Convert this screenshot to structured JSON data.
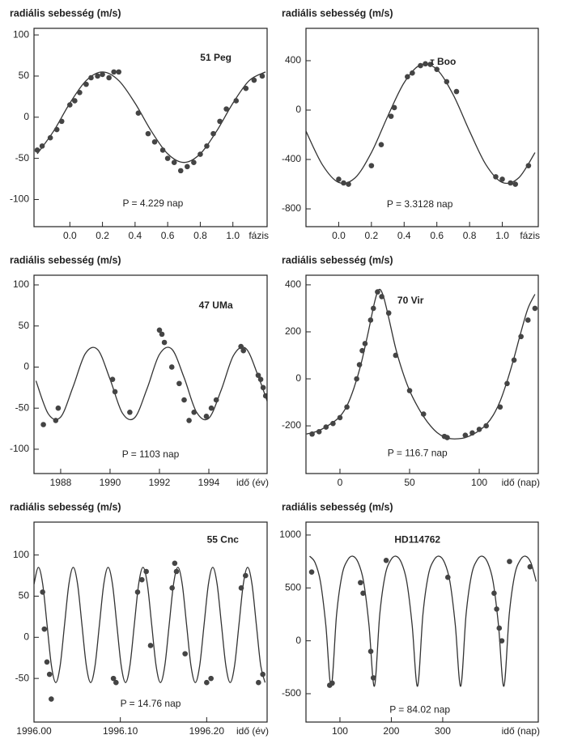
{
  "chart_data": [
    {
      "type": "scatter",
      "ylabel": "radiális sebesség (m/s)",
      "annotation": "51 Peg",
      "period": "P = 4.229 nap",
      "xlabel": "fázis",
      "color": "#444",
      "xlim": [
        -0.22,
        1.21
      ],
      "ylim": [
        -133,
        108
      ],
      "xticks": [
        {
          "value": 0,
          "label": "0.0"
        },
        0.2,
        0.4,
        0.6,
        0.8,
        {
          "value": 1,
          "label": "1.0"
        }
      ],
      "yticks": [
        -100,
        -50,
        0,
        50,
        100
      ],
      "points": {
        "x": [
          -0.2,
          -0.17,
          -0.12,
          -0.08,
          -0.05,
          0.0,
          0.03,
          0.06,
          0.1,
          0.13,
          0.17,
          0.2,
          0.24,
          0.27,
          0.3,
          0.42,
          0.48,
          0.52,
          0.57,
          0.6,
          0.64,
          0.68,
          0.72,
          0.76,
          0.8,
          0.84,
          0.88,
          0.92,
          0.96,
          1.02,
          1.08,
          1.13,
          1.18
        ],
        "y": [
          -40,
          -35,
          -25,
          -15,
          -5,
          15,
          20,
          30,
          40,
          48,
          50,
          52,
          48,
          55,
          55,
          5,
          -20,
          -30,
          -40,
          -50,
          -55,
          -65,
          -60,
          -55,
          -45,
          -35,
          -20,
          -5,
          10,
          20,
          35,
          45,
          50
        ]
      },
      "curve": {
        "x": [
          -0.2,
          -0.1,
          0,
          0.1,
          0.2,
          0.3,
          0.4,
          0.5,
          0.6,
          0.7,
          0.8,
          0.9,
          1.0,
          1.1,
          1.2
        ],
        "y": [
          -44.5,
          -17,
          17,
          44.5,
          55,
          44.5,
          17,
          -17,
          -44.5,
          -55,
          -44.5,
          -17,
          17,
          44.5,
          55
        ]
      }
    },
    {
      "type": "scatter",
      "ylabel": "radiális sebesség (m/s)",
      "annotation": "τ Boo",
      "period": "P = 3.3128 nap",
      "xlabel": "fázis",
      "color": "#444",
      "xlim": [
        -0.2,
        1.22
      ],
      "ylim": [
        -944,
        662
      ],
      "xticks": [
        {
          "value": 0,
          "label": "0.0"
        },
        0.2,
        0.4,
        0.6,
        0.8,
        {
          "value": 1,
          "label": "1.0"
        }
      ],
      "yticks": [
        -800,
        -400,
        0,
        400
      ],
      "points": {
        "x": [
          0.0,
          0.03,
          0.06,
          0.2,
          0.26,
          0.32,
          0.34,
          0.42,
          0.45,
          0.5,
          0.53,
          0.56,
          0.6,
          0.66,
          0.72,
          0.96,
          1.0,
          1.05,
          1.08,
          1.16
        ],
        "y": [
          -560,
          -590,
          -600,
          -450,
          -280,
          -50,
          20,
          270,
          300,
          360,
          375,
          370,
          330,
          230,
          150,
          -540,
          -560,
          -590,
          -600,
          -450
        ]
      },
      "curve": {
        "x": [
          -0.2,
          -0.1,
          0,
          0.1,
          0.2,
          0.3,
          0.4,
          0.5,
          0.6,
          0.7,
          0.8,
          0.9,
          1.0,
          1.1,
          1.2
        ],
        "y": [
          -171,
          -442,
          -586,
          -549,
          -344,
          -49,
          222,
          366,
          329,
          124,
          -171,
          -442,
          -586,
          -549,
          -344
        ]
      }
    },
    {
      "type": "scatter",
      "ylabel": "radiális sebesség (m/s)",
      "annotation": "47 UMa",
      "period": "P = 1103 nap",
      "xlabel": "idő (év)",
      "color": "#444",
      "xlim": [
        1986.92,
        1996.36
      ],
      "ylim": [
        -129.6,
        111.8
      ],
      "xticks": [
        1988,
        1990,
        1992,
        1994
      ],
      "yticks": [
        -100,
        -50,
        0,
        50,
        100
      ],
      "points": {
        "x": [
          1987.3,
          1987.8,
          1987.9,
          1990.1,
          1990.2,
          1990.8,
          1992.0,
          1992.1,
          1992.2,
          1992.5,
          1992.8,
          1993.0,
          1993.2,
          1993.4,
          1993.9,
          1994.1,
          1994.3,
          1995.3,
          1995.4,
          1996.0,
          1996.1,
          1996.2,
          1996.3
        ],
        "y": [
          -70,
          -65,
          -50,
          -15,
          -30,
          -55,
          45,
          40,
          30,
          0,
          -20,
          -40,
          -65,
          -55,
          -60,
          -50,
          -40,
          25,
          20,
          -10,
          -15,
          -25,
          -35
        ]
      },
      "curve": {
        "x": [
          1987,
          1987.5,
          1988,
          1988.5,
          1989,
          1989.5,
          1990,
          1990.5,
          1991,
          1991.5,
          1992,
          1992.5,
          1993,
          1993.5,
          1994,
          1994.5,
          1995,
          1995.5,
          1996,
          1996.5
        ],
        "y": [
          -16.7,
          -57,
          -60.8,
          -24.2,
          16.5,
          21.2,
          -14.8,
          -56,
          -61.5,
          -26.1,
          15.4,
          21.9,
          -13,
          -54.8,
          -62.2,
          -28,
          14.2,
          22.6,
          -11.1,
          -53.6
        ]
      }
    },
    {
      "type": "scatter",
      "ylabel": "radiális sebesség (m/s)",
      "annotation": "70 Vir",
      "period": "P = 116.7 nap",
      "xlabel": "idő (nap)",
      "color": "#444",
      "xlim": [
        -24.4,
        142.4
      ],
      "ylim": [
        -403,
        441
      ],
      "xticks": [
        0,
        50,
        100
      ],
      "yticks": [
        -200,
        0,
        200,
        400
      ],
      "points": {
        "x": [
          -20,
          -15,
          -10,
          -5,
          0,
          5,
          12,
          14,
          16,
          18,
          22,
          24,
          27,
          30,
          35,
          40,
          50,
          60,
          75,
          77,
          90,
          95,
          100,
          105,
          115,
          120,
          125,
          130,
          135,
          140
        ],
        "y": [
          -235,
          -225,
          -205,
          -190,
          -165,
          -120,
          0,
          60,
          120,
          150,
          250,
          300,
          370,
          350,
          280,
          100,
          -50,
          -150,
          -245,
          -250,
          -240,
          -230,
          -215,
          -200,
          -120,
          -20,
          80,
          180,
          250,
          300
        ]
      },
      "curve": {
        "x": [
          -24,
          -15,
          -5,
          0,
          5,
          10,
          15,
          20,
          25,
          28,
          31,
          35,
          40,
          45,
          50,
          55,
          60,
          65,
          70,
          75,
          80,
          85,
          90,
          95,
          100,
          105,
          110,
          115,
          120,
          125,
          130,
          135,
          140
        ],
        "y": [
          -235,
          -220,
          -185,
          -160,
          -115,
          -40,
          60,
          190,
          330,
          380,
          355,
          260,
          130,
          30,
          -50,
          -110,
          -160,
          -200,
          -230,
          -248,
          -255,
          -255,
          -250,
          -238,
          -220,
          -195,
          -155,
          -95,
          -10,
          90,
          200,
          300,
          360
        ]
      }
    },
    {
      "type": "scatter",
      "ylabel": "radiális sebesség (m/s)",
      "annotation": "55 Cnc",
      "period": "P = 14.76 nap",
      "xlabel": "idő (év)",
      "color": "#444",
      "xlim": [
        1996.0,
        1996.27
      ],
      "ylim": [
        -103,
        140
      ],
      "xticks": [
        {
          "value": 1996.0,
          "label": "1996.00"
        },
        {
          "value": 1996.1,
          "label": "1996.10"
        },
        {
          "value": 1996.2,
          "label": "1996.20"
        }
      ],
      "yticks": [
        -50,
        0,
        50,
        100
      ],
      "points": {
        "x": [
          1996.01,
          1996.012,
          1996.015,
          1996.018,
          1996.02,
          1996.092,
          1996.095,
          1996.12,
          1996.125,
          1996.13,
          1996.135,
          1996.16,
          1996.163,
          1996.165,
          1996.175,
          1996.2,
          1996.205,
          1996.24,
          1996.245,
          1996.26,
          1996.265
        ],
        "y": [
          55,
          10,
          -30,
          -45,
          -75,
          -50,
          -55,
          55,
          70,
          80,
          -10,
          60,
          90,
          80,
          -20,
          -55,
          -50,
          60,
          75,
          -55,
          -45
        ]
      },
      "curve": {
        "x": [
          1996.0,
          1996.00505,
          1996.0101,
          1996.01515,
          1996.0202,
          1996.02525,
          1996.0303,
          1996.03535,
          1996.0404,
          1996.04545,
          1996.0505,
          1996.05555,
          1996.0606,
          1996.06565,
          1996.0707,
          1996.07575,
          1996.0808,
          1996.08585,
          1996.0909,
          1996.09595,
          1996.101,
          1996.10605,
          1996.1111,
          1996.11615,
          1996.1212,
          1996.12625,
          1996.1313,
          1996.13635,
          1996.1414,
          1996.14645,
          1996.1515,
          1996.15655,
          1996.1616,
          1996.16665,
          1996.1717,
          1996.17675,
          1996.1818,
          1996.18685,
          1996.1919,
          1996.19695,
          1996.202,
          1996.20705,
          1996.2121,
          1996.21715,
          1996.2222,
          1996.22725,
          1996.2323,
          1996.23735,
          1996.2424,
          1996.24745,
          1996.2525,
          1996.25755,
          1996.2626,
          1996.26765
        ],
        "y": [
          64.5,
          85,
          64.5,
          15,
          -34.5,
          -55,
          -34.5,
          15,
          64.5,
          85,
          64.5,
          15,
          -34.5,
          -55,
          -34.5,
          15,
          64.5,
          85,
          64.5,
          15,
          -34.5,
          -55,
          -34.5,
          15,
          64.5,
          85,
          64.5,
          15,
          -34.5,
          -55,
          -34.5,
          15,
          64.5,
          85,
          64.5,
          15,
          -34.5,
          -55,
          -34.5,
          15,
          64.5,
          85,
          64.5,
          15,
          -34.5,
          -55,
          -34.5,
          15,
          64.5,
          85,
          64.5,
          15,
          -34.5,
          -55
        ]
      }
    },
    {
      "type": "scatter",
      "ylabel": "radiális sebesség (m/s)",
      "annotation": "HD114762",
      "period": "P = 84.02 nap",
      "xlabel": "idő (nap)",
      "color": "#444",
      "xlim": [
        33.9,
        486
      ],
      "ylim": [
        -768,
        1122
      ],
      "xticks": [
        100,
        200,
        300
      ],
      "yticks": [
        -500,
        0,
        500,
        1000
      ],
      "points": {
        "x": [
          45,
          80,
          85,
          140,
          145,
          160,
          165,
          190,
          310,
          400,
          405,
          410,
          415,
          430,
          470
        ],
        "y": [
          650,
          -420,
          -400,
          550,
          450,
          -100,
          -350,
          760,
          600,
          450,
          300,
          120,
          0,
          750,
          700
        ]
      },
      "curve": {
        "x": [
          41,
          51.5,
          62,
          72.5,
          83,
          93.5,
          104,
          114.5,
          125,
          135.5,
          146,
          156.5,
          167,
          177.5,
          188,
          198.5,
          209,
          219.5,
          230,
          240.5,
          251,
          261.5,
          272,
          282.5,
          293,
          303.5,
          314,
          324.5,
          335,
          345.5,
          356,
          366.5,
          377,
          387.5,
          398,
          408.5,
          419,
          429.5,
          440,
          450.5,
          461,
          471.5,
          482
        ],
        "y": [
          800,
          740,
          560,
          150,
          -430,
          250,
          620,
          760,
          800,
          740,
          560,
          150,
          -430,
          250,
          620,
          760,
          800,
          740,
          560,
          150,
          -430,
          250,
          620,
          760,
          800,
          740,
          560,
          150,
          -430,
          250,
          620,
          760,
          800,
          740,
          560,
          150,
          -430,
          250,
          620,
          760,
          800,
          740,
          560
        ]
      }
    }
  ]
}
